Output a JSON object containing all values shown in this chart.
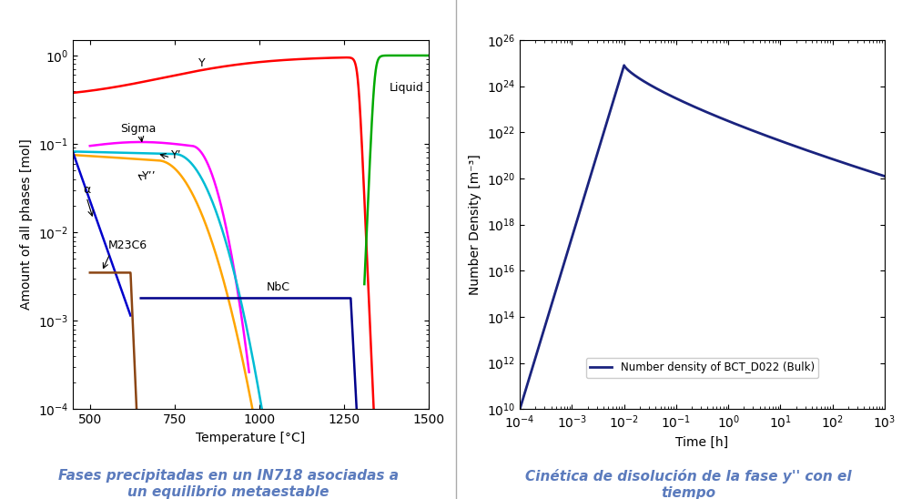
{
  "fig_width": 10.02,
  "fig_height": 5.48,
  "bg_color": "#ffffff",
  "left_panel": {
    "xlabel": "Temperature [°C]",
    "ylabel": "Amount of all phases [mol]",
    "xlim": [
      450,
      1500
    ],
    "ylim": [
      0.0001,
      1.5
    ],
    "xticks": [
      500,
      750,
      1000,
      1250,
      1500
    ],
    "colors": {
      "Y": "#ff0000",
      "Sigma": "#ff00ff",
      "Yprime": "#00bcd4",
      "Ydprime": "#ffa500",
      "alpha": "#0000cc",
      "M23C6": "#8b4513",
      "NbC": "#00008b",
      "Liquid": "#00aa00"
    }
  },
  "right_panel": {
    "xlabel": "Time [h]",
    "ylabel": "Number Density [m⁻³]",
    "xlim": [
      0.0001,
      1000.0
    ],
    "ylim": [
      10000000000.0,
      1e+26
    ],
    "line_color": "#1a237e",
    "legend_label": "Number density of BCT_D022 (Bulk)"
  },
  "caption_left": "Fases precipitadas en un IN718 asociadas a\nun equilibrio metaestable",
  "caption_right": "Cinética de disolución de la fase y'' con el\ntiempo",
  "caption_color": "#5b7bbd",
  "caption_fontsize": 11
}
